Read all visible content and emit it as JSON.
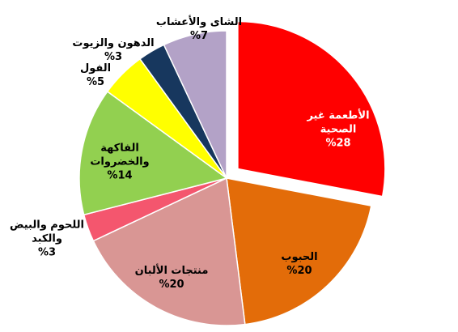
{
  "chart_data": {
    "type": "pie",
    "categories": [
      "الأطعمة غير\nالصحية",
      "الحبوب",
      "منتجات الألبان",
      "اللحوم والبيض\nوالكبد",
      "الفاكهة\nوالخضروات",
      "الفول",
      "الدهون والزيوت",
      "الشاى والأعشاب"
    ],
    "values": [
      28,
      20,
      20,
      3,
      14,
      5,
      3,
      7
    ],
    "value_labels": [
      "%28",
      "%20",
      "%20",
      "%3",
      "%14",
      "%5",
      "%3",
      "%7"
    ],
    "colors": [
      "#ff0000",
      "#e36c09",
      "#d99694",
      "#f4566e",
      "#92d050",
      "#ffff00",
      "#17375e",
      "#b3a2c7"
    ],
    "exploded": [
      0
    ]
  }
}
